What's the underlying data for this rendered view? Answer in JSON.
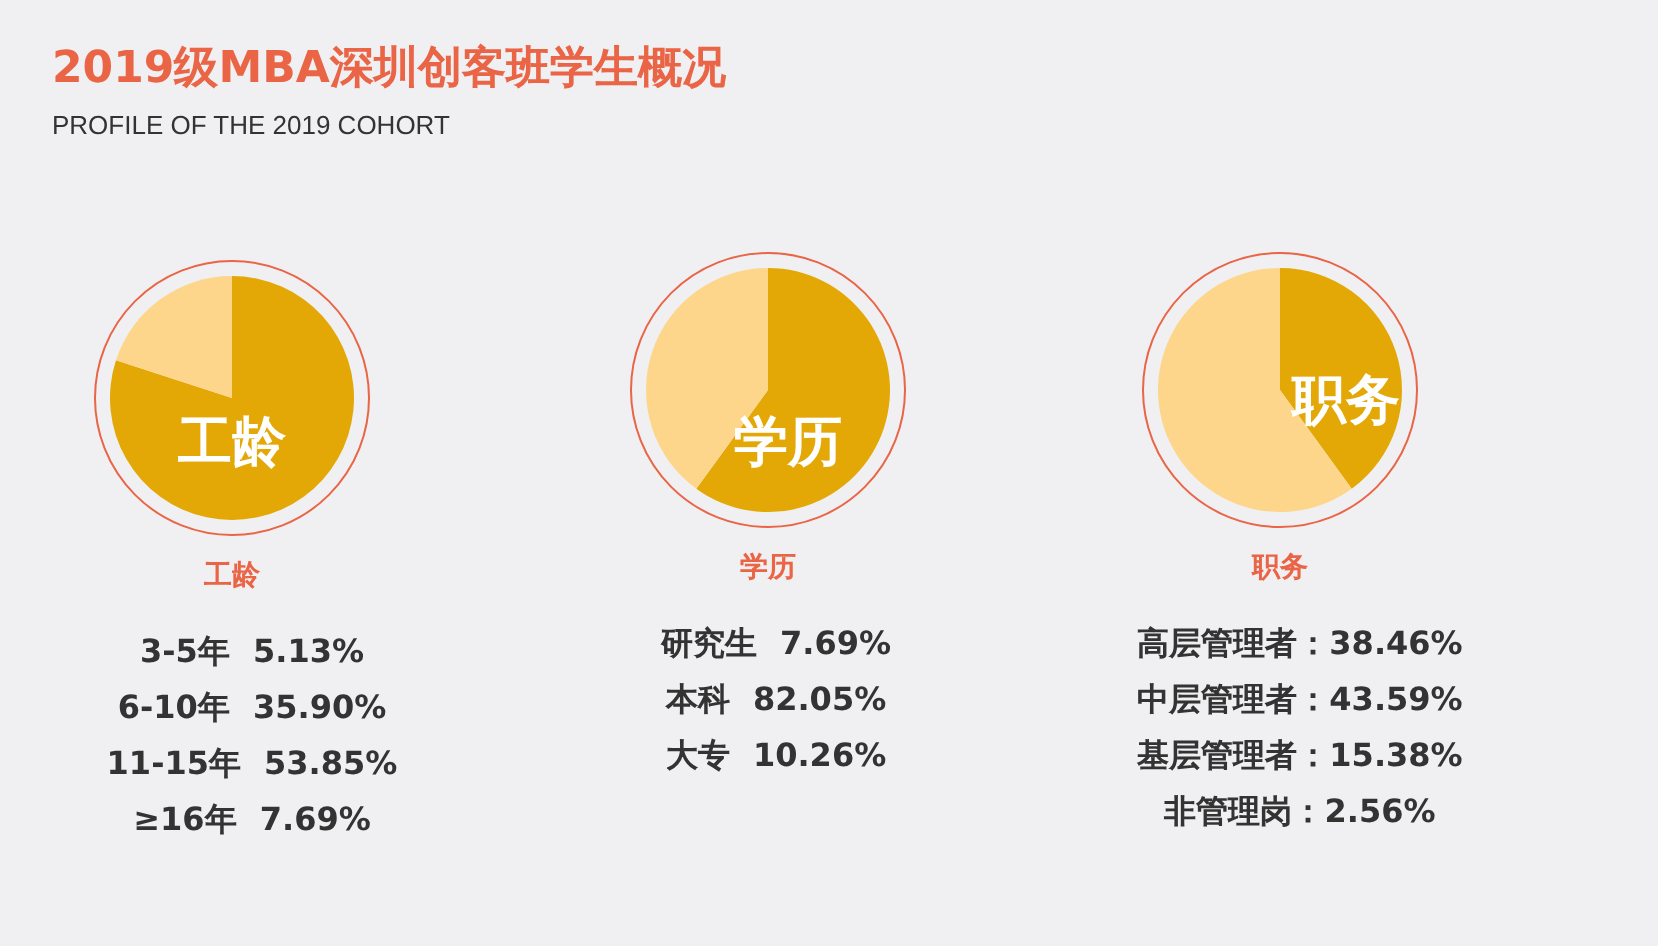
{
  "chart_data": [
    {
      "type": "other",
      "title": "2019级MBA深圳创客班学生概况",
      "subtitle": "PROFILE OF THE 2019 COHORT"
    },
    {
      "type": "pie",
      "title": "工龄",
      "categories": [
        null,
        null
      ],
      "values": [
        80,
        20
      ],
      "colors": [
        "#e3a806",
        "#fdd68b"
      ],
      "annotations": [
        "工龄",
        "3-5年 5.13%",
        "6-10年 35.90%",
        "11-15年 53.85%",
        "≥16年 7.69%"
      ]
    },
    {
      "type": "pie",
      "title": "学历",
      "categories": [
        null,
        null
      ],
      "values": [
        60,
        40
      ],
      "colors": [
        "#e3a806",
        "#fdd68b"
      ],
      "annotations": [
        "学历",
        "研究生 7.69%",
        "本科 82.05%",
        "大专 10.26%"
      ]
    },
    {
      "type": "pie",
      "title": "职务",
      "categories": [
        null,
        null
      ],
      "values": [
        40,
        60
      ],
      "colors": [
        "#e3a806",
        "#fdd68b"
      ],
      "annotations": [
        "职务",
        "高层管理者：38.46%",
        "中层管理者：43.59%",
        "基层管理者：15.38%",
        "非管理岗：2.56%"
      ]
    }
  ]
}
